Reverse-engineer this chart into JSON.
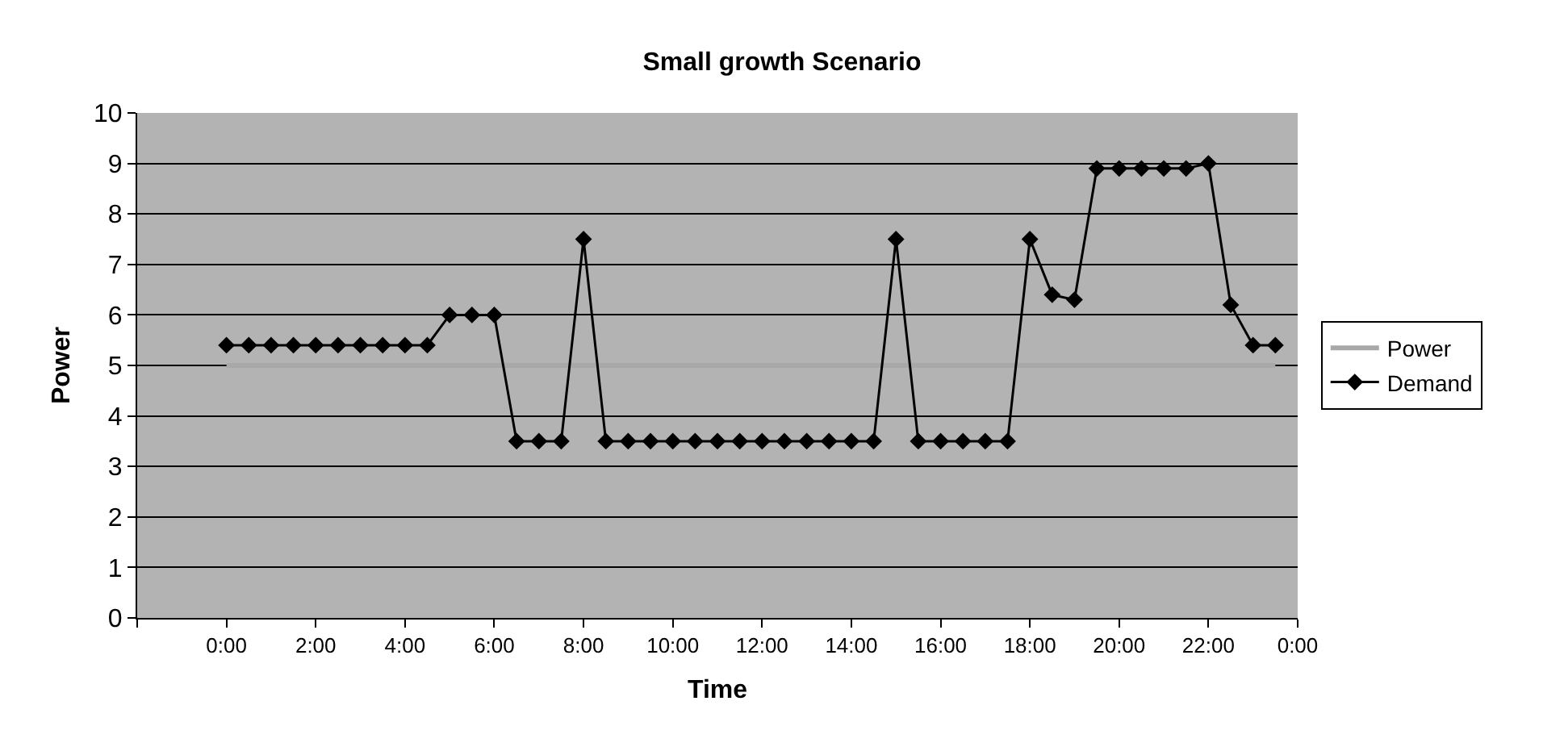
{
  "chart_data": {
    "type": "line",
    "title": "Small growth Scenario",
    "xlabel": "Time",
    "ylabel": "Power",
    "x": [
      0,
      0.5,
      1,
      1.5,
      2,
      2.5,
      3,
      3.5,
      4,
      4.5,
      5,
      5.5,
      6,
      6.5,
      7,
      7.5,
      8,
      8.5,
      9,
      9.5,
      10,
      10.5,
      11,
      11.5,
      12,
      12.5,
      13,
      13.5,
      14,
      14.5,
      15,
      15.5,
      16,
      16.5,
      17,
      17.5,
      18,
      18.5,
      19,
      19.5,
      20,
      20.5,
      21,
      21.5,
      22,
      22.5,
      23,
      23.5
    ],
    "series": [
      {
        "name": "Power",
        "color": "#a8a8a8",
        "marker": "none",
        "values": [
          5,
          5,
          5,
          5,
          5,
          5,
          5,
          5,
          5,
          5,
          5,
          5,
          5,
          5,
          5,
          5,
          5,
          5,
          5,
          5,
          5,
          5,
          5,
          5,
          5,
          5,
          5,
          5,
          5,
          5,
          5,
          5,
          5,
          5,
          5,
          5,
          5,
          5,
          5,
          5,
          5,
          5,
          5,
          5,
          5,
          5,
          5,
          5
        ]
      },
      {
        "name": "Demand",
        "color": "#000000",
        "marker": "diamond",
        "values": [
          5.4,
          5.4,
          5.4,
          5.4,
          5.4,
          5.4,
          5.4,
          5.4,
          5.4,
          5.4,
          6.0,
          6.0,
          6.0,
          3.5,
          3.5,
          3.5,
          7.5,
          3.5,
          3.5,
          3.5,
          3.5,
          3.5,
          3.5,
          3.5,
          3.5,
          3.5,
          3.5,
          3.5,
          3.5,
          3.5,
          7.5,
          3.5,
          3.5,
          3.5,
          3.5,
          3.5,
          7.5,
          6.4,
          6.3,
          8.9,
          8.9,
          8.9,
          8.9,
          8.9,
          9.0,
          6.2,
          5.4,
          5.4
        ]
      }
    ],
    "xlim": [
      -2,
      24
    ],
    "xticks": [
      {
        "value": -2,
        "label": null
      },
      {
        "value": 0,
        "label": "0:00"
      },
      {
        "value": 2,
        "label": "2:00"
      },
      {
        "value": 4,
        "label": "4:00"
      },
      {
        "value": 6,
        "label": "6:00"
      },
      {
        "value": 8,
        "label": "8:00"
      },
      {
        "value": 10,
        "label": "10:00"
      },
      {
        "value": 12,
        "label": "12:00"
      },
      {
        "value": 14,
        "label": "14:00"
      },
      {
        "value": 16,
        "label": "16:00"
      },
      {
        "value": 18,
        "label": "18:00"
      },
      {
        "value": 20,
        "label": "20:00"
      },
      {
        "value": 22,
        "label": "22:00"
      },
      {
        "value": 24,
        "label": "0:00"
      }
    ],
    "ylim": [
      0,
      10
    ],
    "yticks": [
      0,
      1,
      2,
      3,
      4,
      5,
      6,
      7,
      8,
      9,
      10
    ],
    "grid": "y",
    "legend": "right",
    "line_style": "solid"
  }
}
